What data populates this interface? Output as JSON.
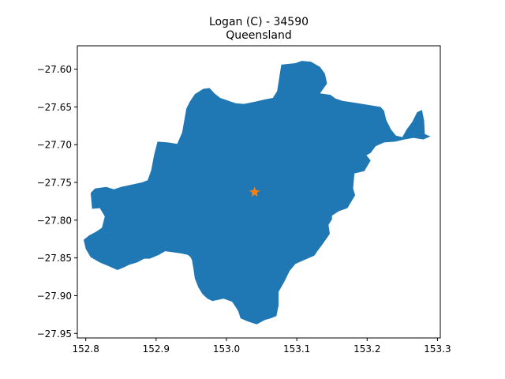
{
  "figure": {
    "title_line1": "Logan (C) - 34590",
    "title_line2": "Queensland"
  },
  "map_data": {
    "type": "choropleth-outline",
    "xlim": [
      152.788,
      153.304
    ],
    "ylim": [
      -27.956,
      -27.569
    ],
    "x_ticks": [
      {
        "value": 152.8,
        "label": "152.8"
      },
      {
        "value": 152.9,
        "label": "152.9"
      },
      {
        "value": 153.0,
        "label": "153.0"
      },
      {
        "value": 153.1,
        "label": "153.1"
      },
      {
        "value": 153.2,
        "label": "153.2"
      },
      {
        "value": 153.3,
        "label": "153.3"
      }
    ],
    "y_ticks": [
      {
        "value": -27.6,
        "label": "−27.60"
      },
      {
        "value": -27.65,
        "label": "−27.65"
      },
      {
        "value": -27.7,
        "label": "−27.70"
      },
      {
        "value": -27.75,
        "label": "−27.75"
      },
      {
        "value": -27.8,
        "label": "−27.80"
      },
      {
        "value": -27.85,
        "label": "−27.85"
      },
      {
        "value": -27.9,
        "label": "−27.90"
      },
      {
        "value": -27.95,
        "label": "−27.95"
      }
    ],
    "region_color": "#1f77b4",
    "marker": {
      "lon": 153.04,
      "lat": -27.763,
      "symbol": "star",
      "color": "#ff7f0e"
    },
    "boundary": [
      [
        153.072,
        -27.629
      ],
      [
        153.078,
        -27.594
      ],
      [
        153.098,
        -27.592
      ],
      [
        153.107,
        -27.589
      ],
      [
        153.12,
        -27.59
      ],
      [
        153.133,
        -27.597
      ],
      [
        153.14,
        -27.606
      ],
      [
        153.143,
        -27.619
      ],
      [
        153.133,
        -27.632
      ],
      [
        153.148,
        -27.634
      ],
      [
        153.155,
        -27.639
      ],
      [
        153.165,
        -27.642
      ],
      [
        153.18,
        -27.644
      ],
      [
        153.193,
        -27.646
      ],
      [
        153.206,
        -27.648
      ],
      [
        153.219,
        -27.65
      ],
      [
        153.224,
        -27.655
      ],
      [
        153.227,
        -27.667
      ],
      [
        153.234,
        -27.68
      ],
      [
        153.241,
        -27.688
      ],
      [
        153.25,
        -27.69
      ],
      [
        153.256,
        -27.68
      ],
      [
        153.264,
        -27.67
      ],
      [
        153.271,
        -27.657
      ],
      [
        153.278,
        -27.654
      ],
      [
        153.281,
        -27.668
      ],
      [
        153.282,
        -27.686
      ],
      [
        153.29,
        -27.689
      ],
      [
        153.28,
        -27.693
      ],
      [
        153.266,
        -27.691
      ],
      [
        153.253,
        -27.693
      ],
      [
        153.24,
        -27.696
      ],
      [
        153.224,
        -27.697
      ],
      [
        153.212,
        -27.702
      ],
      [
        153.205,
        -27.711
      ],
      [
        153.199,
        -27.714
      ],
      [
        153.205,
        -27.721
      ],
      [
        153.196,
        -27.735
      ],
      [
        153.182,
        -27.738
      ],
      [
        153.18,
        -27.758
      ],
      [
        153.183,
        -27.767
      ],
      [
        153.172,
        -27.784
      ],
      [
        153.16,
        -27.788
      ],
      [
        153.15,
        -27.794
      ],
      [
        153.15,
        -27.799
      ],
      [
        153.145,
        -27.806
      ],
      [
        153.147,
        -27.818
      ],
      [
        153.135,
        -27.834
      ],
      [
        153.13,
        -27.84
      ],
      [
        153.125,
        -27.847
      ],
      [
        153.11,
        -27.853
      ],
      [
        153.098,
        -27.858
      ],
      [
        153.09,
        -27.867
      ],
      [
        153.082,
        -27.882
      ],
      [
        153.074,
        -27.895
      ],
      [
        153.074,
        -27.913
      ],
      [
        153.071,
        -27.927
      ],
      [
        153.063,
        -27.93
      ],
      [
        153.055,
        -27.932
      ],
      [
        153.043,
        -27.938
      ],
      [
        153.03,
        -27.934
      ],
      [
        153.02,
        -27.93
      ],
      [
        153.017,
        -27.921
      ],
      [
        153.013,
        -27.915
      ],
      [
        153.008,
        -27.908
      ],
      [
        152.996,
        -27.904
      ],
      [
        152.98,
        -27.907
      ],
      [
        152.973,
        -27.904
      ],
      [
        152.966,
        -27.898
      ],
      [
        152.96,
        -27.889
      ],
      [
        152.955,
        -27.877
      ],
      [
        152.953,
        -27.864
      ],
      [
        152.951,
        -27.853
      ],
      [
        152.949,
        -27.849
      ],
      [
        152.945,
        -27.846
      ],
      [
        152.935,
        -27.844
      ],
      [
        152.928,
        -27.843
      ],
      [
        152.913,
        -27.841
      ],
      [
        152.904,
        -27.846
      ],
      [
        152.891,
        -27.851
      ],
      [
        152.883,
        -27.851
      ],
      [
        152.873,
        -27.856
      ],
      [
        152.862,
        -27.859
      ],
      [
        152.853,
        -27.863
      ],
      [
        152.845,
        -27.866
      ],
      [
        152.833,
        -27.861
      ],
      [
        152.82,
        -27.856
      ],
      [
        152.807,
        -27.849
      ],
      [
        152.8,
        -27.838
      ],
      [
        152.797,
        -27.826
      ],
      [
        152.805,
        -27.82
      ],
      [
        152.815,
        -27.815
      ],
      [
        152.823,
        -27.81
      ],
      [
        152.827,
        -27.795
      ],
      [
        152.82,
        -27.784
      ],
      [
        152.809,
        -27.785
      ],
      [
        152.807,
        -27.764
      ],
      [
        152.813,
        -27.758
      ],
      [
        152.829,
        -27.756
      ],
      [
        152.84,
        -27.759
      ],
      [
        152.85,
        -27.756
      ],
      [
        152.865,
        -27.753
      ],
      [
        152.88,
        -27.75
      ],
      [
        152.888,
        -27.747
      ],
      [
        152.893,
        -27.734
      ],
      [
        152.897,
        -27.714
      ],
      [
        152.902,
        -27.696
      ],
      [
        152.917,
        -27.697
      ],
      [
        152.93,
        -27.699
      ],
      [
        152.937,
        -27.684
      ],
      [
        152.94,
        -27.668
      ],
      [
        152.943,
        -27.652
      ],
      [
        152.948,
        -27.643
      ],
      [
        152.955,
        -27.633
      ],
      [
        152.967,
        -27.626
      ],
      [
        152.976,
        -27.625
      ],
      [
        152.983,
        -27.632
      ],
      [
        152.991,
        -27.638
      ],
      [
        153.0,
        -27.641
      ],
      [
        153.013,
        -27.645
      ],
      [
        153.025,
        -27.646
      ],
      [
        153.041,
        -27.643
      ],
      [
        153.055,
        -27.64
      ],
      [
        153.066,
        -27.638
      ]
    ]
  }
}
